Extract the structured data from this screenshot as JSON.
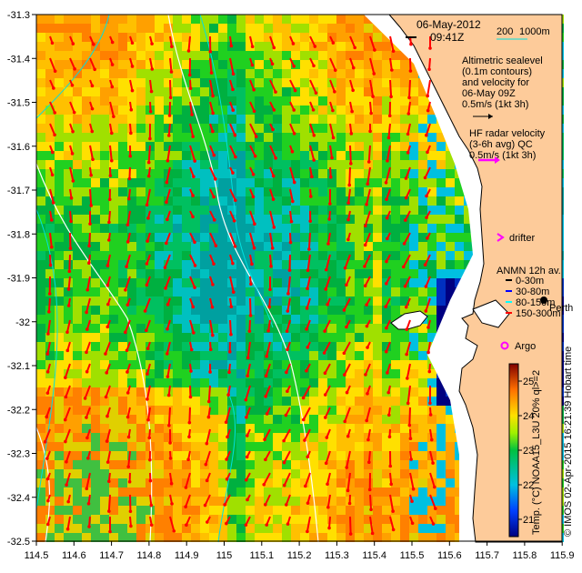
{
  "title": {
    "date": "06-May-2012",
    "time": "09:41Z"
  },
  "depth_legend": {
    "a": "200",
    "b": "1000m"
  },
  "altimetry": {
    "lines": [
      "Altimetric sealevel",
      "(0.1m contours)",
      "and velocity for",
      "06-May 09Z",
      "0.5m/s (1kt 3h)"
    ]
  },
  "hf_radar": {
    "lines": [
      "HF radar velocity",
      "(3-6h avg) QC",
      "0.5m/s (1kt 3h)"
    ]
  },
  "drifter_label": "drifter",
  "anmn": {
    "title": "ANMN 12h av.",
    "items": [
      {
        "label": "0-30m",
        "color": "#000000"
      },
      {
        "label": "30-80m",
        "color": "#0000ff"
      },
      {
        "label": "80-150m",
        "color": "#00ffff"
      },
      {
        "label": "150-300m",
        "color": "#ff0000"
      }
    ]
  },
  "city_label": "Perth",
  "argo_label": "Argo",
  "colorbar": {
    "title": "Temp. (°C) NOAA15_L3U 20% ql>=2",
    "ticks": [
      "21",
      "22",
      "23",
      "24",
      "25"
    ],
    "min": 20.5,
    "max": 25.5
  },
  "credit": "© IMOS 02-Apr-2015 16:21:39 Hobart time",
  "axes": {
    "x_ticks": [
      "114.5",
      "114.6",
      "114.7",
      "114.8",
      "114.9",
      "115",
      "115.1",
      "115.2",
      "115.3",
      "115.4",
      "115.5",
      "115.6",
      "115.7",
      "115.8",
      "115.9"
    ],
    "y_ticks": [
      "-31.3",
      "-31.4",
      "-31.5",
      "-31.6",
      "-31.7",
      "-31.8",
      "-31.9",
      "-32",
      "-32.1",
      "-32.2",
      "-32.3",
      "-32.4",
      "-32.5"
    ]
  },
  "colors": {
    "land": "#fdcb9a",
    "hf_arrow": "#ff00ff",
    "current_arrow": "#ff0000"
  }
}
